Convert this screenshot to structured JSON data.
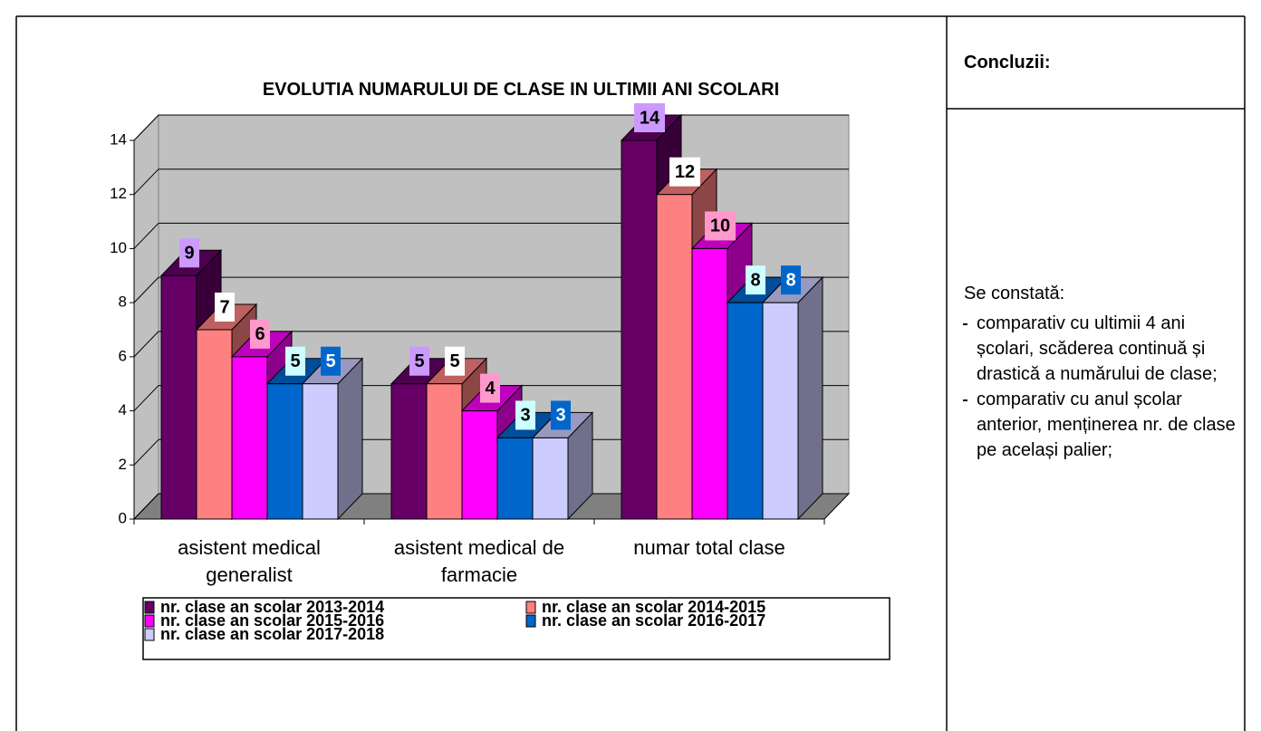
{
  "chart_data": {
    "type": "bar3d",
    "title": "EVOLUTIA NUMARULUI DE CLASE IN ULTIMII ANI SCOLARI",
    "categories": [
      "asistent medical generalist",
      "asistent medical de farmacie",
      "numar total clase"
    ],
    "series": [
      {
        "name": "nr. clase an scolar 2013-2014",
        "color": "#660066",
        "label_color": "#cc99ff",
        "values": [
          9,
          5,
          14
        ]
      },
      {
        "name": "nr. clase an scolar 2014-2015",
        "color": "#ff8080",
        "label_color": "#ffffff",
        "values": [
          7,
          5,
          12
        ]
      },
      {
        "name": "nr. clase an scolar 2015-2016",
        "color": "#ff00ff",
        "label_color": "#ff99cc",
        "values": [
          6,
          4,
          10
        ]
      },
      {
        "name": "nr. clase an scolar 2016-2017",
        "color": "#0066cc",
        "label_color": "#ccffff",
        "values": [
          5,
          3,
          8
        ]
      },
      {
        "name": "nr. clase an scolar 2017-2018",
        "color": "#ccccff",
        "label_color": "#0066cc",
        "values": [
          5,
          3,
          8
        ]
      }
    ],
    "ylim": [
      0,
      14
    ],
    "yticks": [
      0,
      2,
      4,
      6,
      8,
      10,
      12,
      14
    ],
    "grid": true,
    "legend": "bottom"
  },
  "conclusions": {
    "heading": "Concluzii:",
    "intro": "Se constată:",
    "bullets": [
      "comparativ cu ultimii 4 ani școlari, scăderea continuă și drastică a numărului de clase;",
      "comparativ cu anul școlar anterior, menținerea nr. de clase pe același palier;"
    ]
  }
}
